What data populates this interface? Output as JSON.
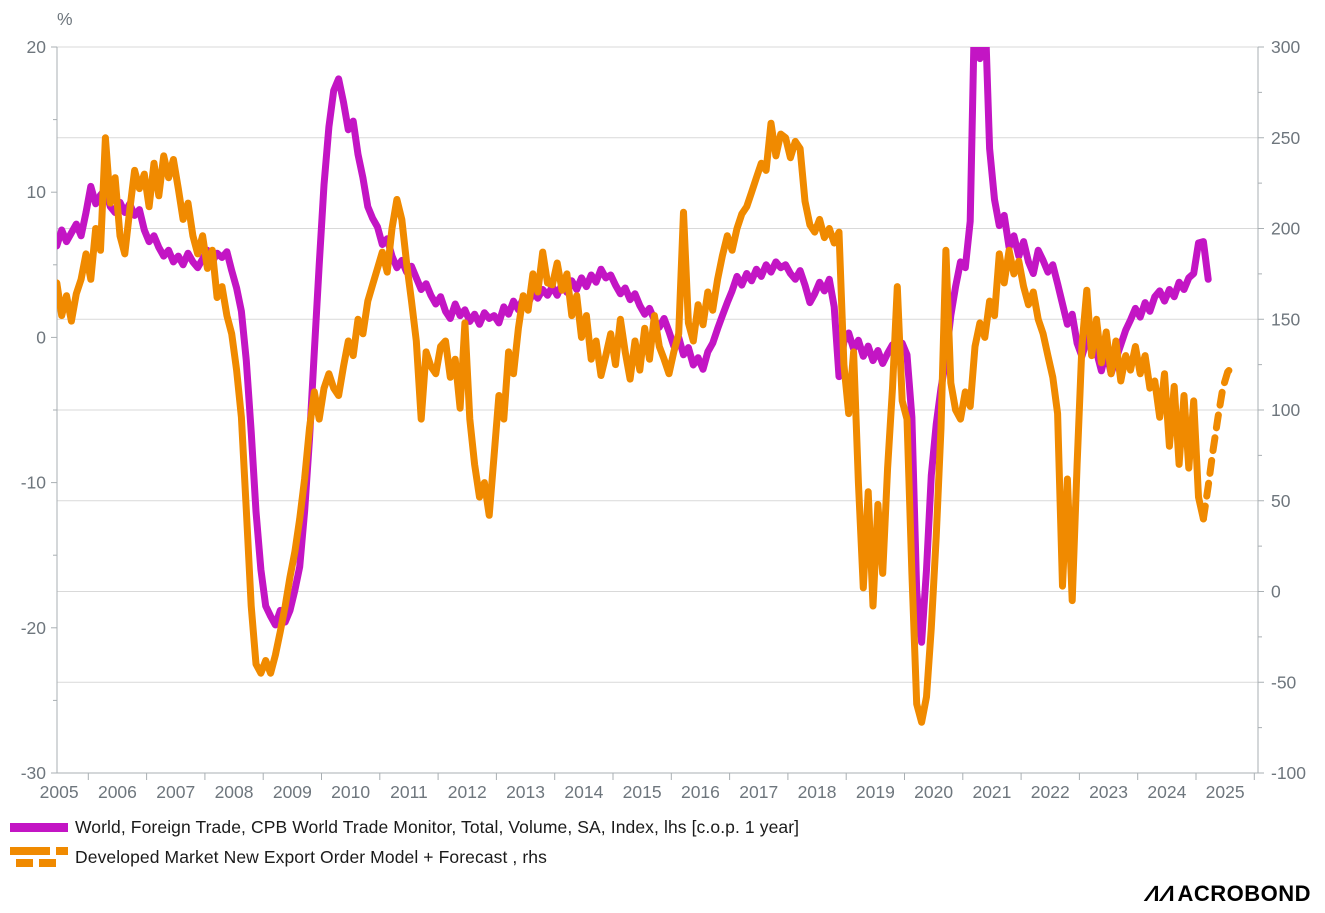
{
  "axes": {
    "percent_label": "%",
    "left_ticks": [
      20,
      10,
      0,
      -10,
      -20,
      -30
    ],
    "right_ticks": [
      300,
      250,
      200,
      150,
      100,
      50,
      0,
      -50,
      -100
    ],
    "x_labels": [
      "2005",
      "2006",
      "2007",
      "2008",
      "2009",
      "2010",
      "2011",
      "2012",
      "2013",
      "2014",
      "2015",
      "2016",
      "2017",
      "2018",
      "2019",
      "2020",
      "2021",
      "2022",
      "2023",
      "2024",
      "2025"
    ]
  },
  "colors": {
    "purple": "#c315c4",
    "orange": "#f08a00",
    "grid": "#d9d9d9",
    "axis": "#a9afb3",
    "tick_text": "#6e767d"
  },
  "legend": [
    {
      "label": "World, Foreign Trade, CPB World Trade Monitor, Total, Volume, SA, Index, lhs [c.o.p. 1 year]",
      "color": "#c315c4",
      "swatch": "solid"
    },
    {
      "label": "Developed Market New Export Order Model + Forecast , rhs",
      "color": "#f08a00",
      "swatch": "solid-dash"
    }
  ],
  "logo": {
    "m_part": "ΛΛ",
    "rest": "ACROBOND"
  },
  "chart_data": {
    "type": "line",
    "title": "",
    "left_ylabel": "%",
    "left_ylim": [
      -30,
      20
    ],
    "right_ylim": [
      -100,
      300
    ],
    "x_start_year_tick": 2006,
    "x_end_year_tick": 2026,
    "grid_at_right_values": [
      300,
      250,
      200,
      150,
      100,
      50,
      0,
      -50
    ],
    "series": [
      {
        "name": "World, Foreign Trade, CPB World Trade Monitor, Total, Volume, SA, Index, lhs [c.o.p. 1 year]",
        "axis": "left",
        "color": "#c315c4",
        "dashed": false,
        "start_t": 2005.46,
        "freq_per_year": 12,
        "values": [
          6.3,
          7.4,
          6.6,
          7.2,
          7.8,
          7.0,
          8.6,
          10.4,
          9.2,
          9.8,
          10.2,
          9.0,
          8.6,
          9.3,
          8.6,
          9.2,
          8.4,
          8.8,
          7.4,
          6.6,
          7.0,
          6.2,
          5.6,
          6.0,
          5.2,
          5.6,
          5.0,
          5.8,
          5.2,
          4.8,
          5.4,
          6.0,
          5.2,
          5.8,
          5.5,
          5.9,
          4.6,
          3.4,
          1.8,
          -1.6,
          -6.5,
          -12.0,
          -16.0,
          -18.5,
          -19.2,
          -19.8,
          -18.8,
          -19.6,
          -18.8,
          -17.4,
          -15.8,
          -12.0,
          -7.0,
          -1.0,
          5.0,
          10.5,
          14.5,
          17.0,
          17.8,
          16.2,
          14.3,
          14.9,
          12.6,
          11.0,
          9.0,
          8.2,
          7.6,
          6.4,
          6.8,
          5.6,
          4.8,
          5.3,
          4.5,
          4.9,
          4.1,
          3.3,
          3.7,
          2.9,
          2.3,
          2.8,
          1.8,
          1.3,
          2.3,
          1.5,
          1.9,
          1.1,
          1.6,
          0.9,
          1.7,
          1.3,
          1.5,
          1.0,
          2.1,
          1.6,
          2.5,
          1.9,
          2.7,
          2.3,
          3.1,
          2.7,
          3.3,
          2.9,
          3.5,
          2.9,
          3.7,
          3.1,
          3.9,
          3.3,
          4.1,
          3.5,
          4.3,
          3.8,
          4.7,
          4.1,
          4.3,
          3.6,
          3.0,
          3.4,
          2.6,
          3.0,
          2.2,
          1.6,
          2.0,
          1.2,
          0.7,
          1.3,
          0.4,
          -0.6,
          0.0,
          -1.2,
          -0.7,
          -1.9,
          -1.4,
          -2.2,
          -1.0,
          -0.4,
          0.6,
          1.5,
          2.4,
          3.2,
          4.2,
          3.6,
          4.4,
          3.9,
          4.7,
          4.2,
          5.0,
          4.5,
          5.2,
          4.8,
          5.0,
          4.4,
          4.0,
          4.6,
          3.6,
          2.4,
          3.0,
          3.8,
          3.2,
          4.0,
          2.1,
          -2.7,
          -0.3,
          0.3,
          -0.8,
          -0.2,
          -1.3,
          -0.6,
          -1.6,
          -0.9,
          -1.8,
          -1.1,
          -0.5,
          -1.0,
          -0.4,
          -1.2,
          -5.5,
          -17.5,
          -21.0,
          -16.0,
          -9.5,
          -6.0,
          -3.5,
          -1.5,
          1.5,
          3.5,
          5.2,
          4.8,
          8.0,
          24.0,
          19.2,
          23.0,
          13.0,
          9.5,
          7.7,
          8.4,
          6.2,
          7.0,
          5.6,
          6.6,
          5.2,
          4.4,
          6.0,
          5.3,
          4.5,
          5.0,
          3.7,
          2.3,
          0.9,
          1.6,
          -0.4,
          -1.3,
          -0.2,
          0.8,
          -1.0,
          -2.3,
          -0.9,
          -2.5,
          -1.5,
          -0.5,
          0.5,
          1.2,
          2.0,
          1.4,
          2.4,
          1.8,
          2.8,
          3.2,
          2.5,
          3.3,
          2.8,
          3.8,
          3.3,
          4.1,
          4.4,
          6.5,
          6.6,
          4.0
        ]
      },
      {
        "name": "Developed Market New Export Order Model",
        "axis": "right",
        "color": "#f08a00",
        "dashed": false,
        "start_t": 2005.46,
        "freq_per_year": 12,
        "values": [
          170,
          152,
          163,
          149,
          164,
          172,
          186,
          172,
          200,
          188,
          250,
          214,
          228,
          196,
          186,
          210,
          232,
          222,
          230,
          212,
          236,
          218,
          240,
          228,
          238,
          222,
          205,
          214,
          196,
          186,
          196,
          178,
          188,
          162,
          168,
          152,
          142,
          122,
          96,
          45,
          -8,
          -40,
          -45,
          -38,
          -45,
          -35,
          -22,
          -8,
          8,
          22,
          40,
          62,
          90,
          110,
          95,
          112,
          120,
          112,
          108,
          124,
          138,
          130,
          150,
          142,
          160,
          169,
          178,
          187,
          176,
          200,
          216,
          205,
          181,
          160,
          138,
          95,
          132,
          124,
          120,
          135,
          138,
          118,
          128,
          101,
          148,
          95,
          70,
          52,
          60,
          42,
          75,
          108,
          95,
          132,
          120,
          145,
          163,
          155,
          175,
          165,
          187,
          170,
          169,
          181,
          166,
          175,
          152,
          163,
          140,
          152,
          128,
          138,
          119,
          130,
          142,
          125,
          150,
          132,
          117,
          138,
          122,
          145,
          128,
          152,
          135,
          128,
          120,
          132,
          142,
          209,
          148,
          138,
          158,
          147,
          165,
          155,
          172,
          185,
          196,
          188,
          200,
          208,
          212,
          220,
          228,
          236,
          232,
          258,
          240,
          252,
          250,
          239,
          248,
          244,
          215,
          202,
          198,
          205,
          195,
          200,
          192,
          198,
          125,
          98,
          132,
          60,
          2,
          55,
          -8,
          48,
          10,
          68,
          112,
          168,
          105,
          95,
          10,
          -62,
          -72,
          -58,
          -20,
          30,
          90,
          188,
          115,
          100,
          95,
          110,
          102,
          135,
          148,
          140,
          160,
          152,
          186,
          170,
          188,
          175,
          182,
          168,
          158,
          165,
          150,
          142,
          130,
          118,
          98,
          3,
          62,
          -5,
          70,
          135,
          166,
          130,
          150,
          126,
          143,
          120,
          138,
          116,
          130,
          122,
          135,
          120,
          130,
          112,
          116,
          96,
          120,
          80,
          113,
          70,
          108,
          68,
          105,
          52,
          40
        ]
      },
      {
        "name": "Forecast",
        "axis": "right",
        "color": "#f08a00",
        "dashed": true,
        "start_t": 2025.1267,
        "freq_per_year": 12,
        "values": [
          40,
          58,
          78,
          96,
          112,
          121,
          124
        ]
      }
    ]
  }
}
